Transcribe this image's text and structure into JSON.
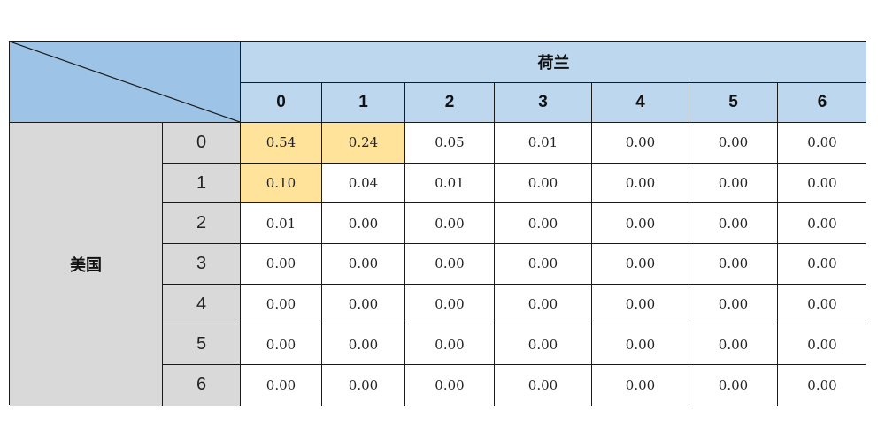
{
  "chart_data": {
    "type": "table",
    "column_group_label": "荷兰",
    "row_group_label": "美国",
    "columns": [
      "0",
      "1",
      "2",
      "3",
      "4",
      "5",
      "6"
    ],
    "rows": [
      "0",
      "1",
      "2",
      "3",
      "4",
      "5",
      "6"
    ],
    "values": [
      [
        "0.54",
        "0.24",
        "0.05",
        "0.01",
        "0.00",
        "0.00",
        "0.00"
      ],
      [
        "0.10",
        "0.04",
        "0.01",
        "0.00",
        "0.00",
        "0.00",
        "0.00"
      ],
      [
        "0.01",
        "0.00",
        "0.00",
        "0.00",
        "0.00",
        "0.00",
        "0.00"
      ],
      [
        "0.00",
        "0.00",
        "0.00",
        "0.00",
        "0.00",
        "0.00",
        "0.00"
      ],
      [
        "0.00",
        "0.00",
        "0.00",
        "0.00",
        "0.00",
        "0.00",
        "0.00"
      ],
      [
        "0.00",
        "0.00",
        "0.00",
        "0.00",
        "0.00",
        "0.00",
        "0.00"
      ],
      [
        "0.00",
        "0.00",
        "0.00",
        "0.00",
        "0.00",
        "0.00",
        "0.00"
      ]
    ],
    "highlighted_cells": [
      [
        0,
        0
      ],
      [
        0,
        1
      ],
      [
        1,
        0
      ]
    ],
    "colors": {
      "header": "#bdd7ee",
      "corner": "#9dc3e6",
      "row_header": "#d9d9d9",
      "highlight": "#ffe39b"
    }
  }
}
